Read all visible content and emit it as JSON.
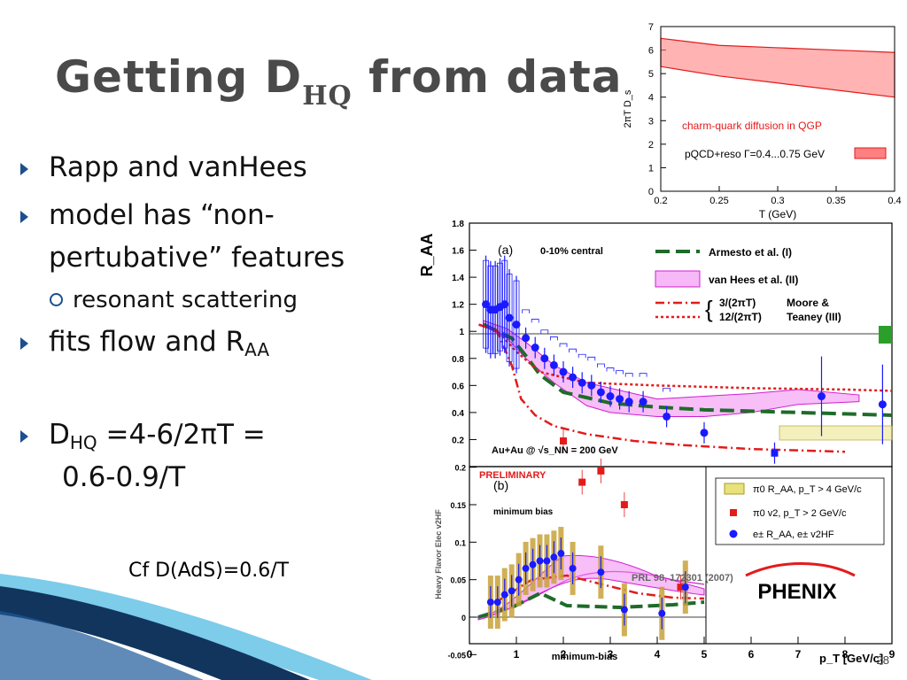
{
  "slide": {
    "title_main": "Getting D",
    "title_sub": "HQ",
    "title_end": " from data",
    "bullets": [
      {
        "level": 1,
        "text": "Rapp and vanHees"
      },
      {
        "level": 1,
        "text": "model  has “non-"
      },
      {
        "level": 0,
        "text": "pertubative” features"
      },
      {
        "level": 2,
        "text": "resonant scattering"
      },
      {
        "level": 1,
        "text": "fits flow  and R",
        "sub": "AA"
      },
      {
        "level": 1,
        "text": "D",
        "sub": "HQ",
        "tail": " =4-6/2πT ="
      },
      {
        "level": 0,
        "text": " 0.6-0.9/T"
      }
    ],
    "cf_text": "Cf  D(AdS)=0.6/T",
    "page_number": "28"
  },
  "colors": {
    "accent": "#1c4f8f",
    "band": "#ff6a6a",
    "magenta": "#e838e8",
    "green": "#2e7d32",
    "red": "#e31b1b",
    "blue": "#1a1aff",
    "gold": "#c8a23a"
  },
  "chart_data": [
    {
      "type": "area",
      "ylabel": "2πT D_s",
      "xlabel": "T (GeV)",
      "xlim": [
        0.2,
        0.4
      ],
      "ylim": [
        0,
        7
      ],
      "xticks": [
        "0.2",
        "0.25",
        "0.3",
        "0.35",
        "0.4"
      ],
      "yticks": [
        "0",
        "1",
        "2",
        "3",
        "4",
        "5",
        "6",
        "7"
      ],
      "annotation": "charm-quark diffusion in QGP",
      "legend": "pQCD+reso Γ=0.4...0.75 GeV",
      "x": [
        0.2,
        0.25,
        0.3,
        0.35,
        0.4
      ],
      "upper": [
        6.5,
        6.2,
        6.1,
        6.0,
        5.9
      ],
      "lower": [
        5.3,
        4.9,
        4.6,
        4.3,
        4.0
      ]
    },
    {
      "type": "line",
      "ylabel": "R_AA",
      "panel_label": "(a)",
      "centrality": "0-10% central",
      "system": "Au+Au @ √s_NN = 200 GeV",
      "xlim": [
        0,
        9
      ],
      "ylim": [
        0,
        1.8
      ],
      "yticks": [
        "0.2",
        "0.4",
        "0.6",
        "0.8",
        "1",
        "1.2",
        "1.4",
        "1.6",
        "1.8"
      ],
      "legend": [
        "Armesto et al. (I)",
        "van Hees et al. (II)",
        "3/(2πT)",
        "12/(2πT)",
        "Moore &",
        "Teaney (III)"
      ],
      "series": [
        {
          "name": "Armesto et al. (I)",
          "x": [
            0.3,
            0.6,
            0.9,
            1.2,
            1.5,
            2,
            3,
            4,
            5,
            6,
            7,
            8,
            9
          ],
          "values": [
            1.05,
            1.0,
            0.95,
            0.82,
            0.68,
            0.55,
            0.47,
            0.44,
            0.42,
            0.41,
            0.4,
            0.39,
            0.38
          ]
        },
        {
          "name": "3/(2πT)",
          "x": [
            0.2,
            0.6,
            0.9,
            1.1,
            1.4,
            1.8,
            2.5,
            3.5,
            4.5,
            6,
            8
          ],
          "values": [
            1.05,
            1.0,
            0.75,
            0.5,
            0.38,
            0.3,
            0.24,
            0.19,
            0.16,
            0.13,
            0.11
          ]
        },
        {
          "name": "12/(2πT)",
          "x": [
            0.2,
            0.6,
            1.0,
            1.5,
            2.5,
            4,
            6,
            8,
            9
          ],
          "values": [
            1.05,
            1.0,
            0.85,
            0.7,
            0.62,
            0.6,
            0.58,
            0.57,
            0.56
          ]
        },
        {
          "name": "van Hees et al. (II) upper",
          "x": [
            0.3,
            0.8,
            1.2,
            1.8,
            2.5,
            3,
            4,
            5,
            6,
            7,
            8.3
          ],
          "values": [
            1.08,
            1.02,
            0.92,
            0.75,
            0.62,
            0.58,
            0.5,
            0.52,
            0.54,
            0.57,
            0.53
          ]
        },
        {
          "name": "van Hees et al. (II) lower",
          "x": [
            0.3,
            0.8,
            1.2,
            1.8,
            2.5,
            3,
            4,
            5,
            6,
            7,
            8.3
          ],
          "values": [
            1.04,
            0.95,
            0.8,
            0.62,
            0.45,
            0.4,
            0.37,
            0.37,
            0.4,
            0.46,
            0.48
          ]
        },
        {
          "name": "e± R_AA",
          "x": [
            0.35,
            0.45,
            0.55,
            0.65,
            0.75,
            0.85,
            1.0,
            1.2,
            1.4,
            1.6,
            1.8,
            2.0,
            2.2,
            2.4,
            2.6,
            2.8,
            3.0,
            3.2,
            3.4,
            3.7,
            4.2,
            5.0,
            6.5,
            7.5,
            8.8
          ],
          "values": [
            1.2,
            1.16,
            1.16,
            1.18,
            1.2,
            1.1,
            1.05,
            0.95,
            0.88,
            0.8,
            0.75,
            0.7,
            0.66,
            0.62,
            0.6,
            0.55,
            0.52,
            0.5,
            0.48,
            0.48,
            0.37,
            0.25,
            0.1,
            0.52,
            0.46
          ]
        }
      ]
    },
    {
      "type": "line",
      "ylabel": "Heavy Flavor Elec v2HF",
      "panel_label": "(b)",
      "preliminary": "PRELIMINARY",
      "subtitle": "minimum bias",
      "xlabel_left": "minimum-bias",
      "xlabel": "p_T [GeV/c]",
      "xticks": [
        "0",
        "1",
        "2",
        "3",
        "4",
        "5",
        "6",
        "7",
        "8",
        "9"
      ],
      "yticks": [
        "-0.05",
        "0",
        "0.05",
        "0.1",
        "0.15",
        "0.2"
      ],
      "reference": "PRL 98, 172301 (2007)",
      "logo": "PHENIX",
      "legend": [
        "π0 R_AA, p_T > 4 GeV/c",
        "π0 v2, p_T > 2 GeV/c",
        "e± R_AA, e± v2HF"
      ],
      "series": [
        {
          "name": "π0 v2, p_T > 2 GeV/c",
          "x": [
            2.0,
            2.4,
            2.8,
            3.3,
            4.5
          ],
          "values": [
            0.235,
            0.18,
            0.195,
            0.15,
            0.04
          ]
        },
        {
          "name": "e± v2HF",
          "x": [
            0.45,
            0.6,
            0.75,
            0.9,
            1.05,
            1.2,
            1.35,
            1.5,
            1.65,
            1.8,
            1.95,
            2.2,
            2.8,
            3.3,
            4.1,
            4.6
          ],
          "values": [
            0.02,
            0.02,
            0.03,
            0.035,
            0.05,
            0.065,
            0.07,
            0.075,
            0.075,
            0.08,
            0.085,
            0.065,
            0.06,
            0.01,
            0.005,
            0.04
          ]
        }
      ]
    }
  ]
}
